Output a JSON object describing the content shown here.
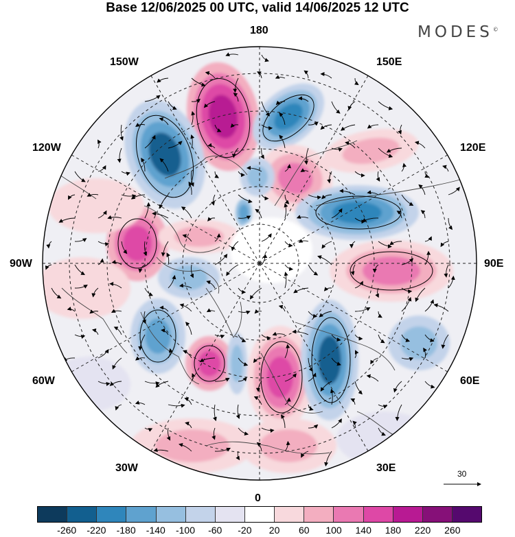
{
  "header": {
    "title": "Base 12/06/2025 00 UTC, valid 14/06/2025 12 UTC",
    "brand": "MODES",
    "brand_mark": "©"
  },
  "longitude_labels": {
    "top": "180",
    "bottom": "0",
    "left": "90W",
    "right": "90E",
    "upper_left_1": "150W",
    "upper_left_2": "120W",
    "upper_right_1": "150E",
    "upper_right_2": "120E",
    "lower_left_1": "60W",
    "lower_left_2": "30W",
    "lower_right_1": "60E",
    "lower_right_2": "30E"
  },
  "wind_scale": {
    "label": "30"
  },
  "colorbar": {
    "colors": [
      "#0d3a5c",
      "#125f8f",
      "#2f86bb",
      "#5fa2cf",
      "#96bfe0",
      "#c3d3ea",
      "#e4e3f1",
      "#ffffff",
      "#f8d9dd",
      "#f3aec0",
      "#ea79b2",
      "#de48a6",
      "#b81a93",
      "#861078",
      "#55096e"
    ],
    "ticks": [
      "-260",
      "-220",
      "-180",
      "-140",
      "-100",
      "-60",
      "-20",
      "20",
      "60",
      "100",
      "140",
      "180",
      "220",
      "260"
    ]
  }
}
